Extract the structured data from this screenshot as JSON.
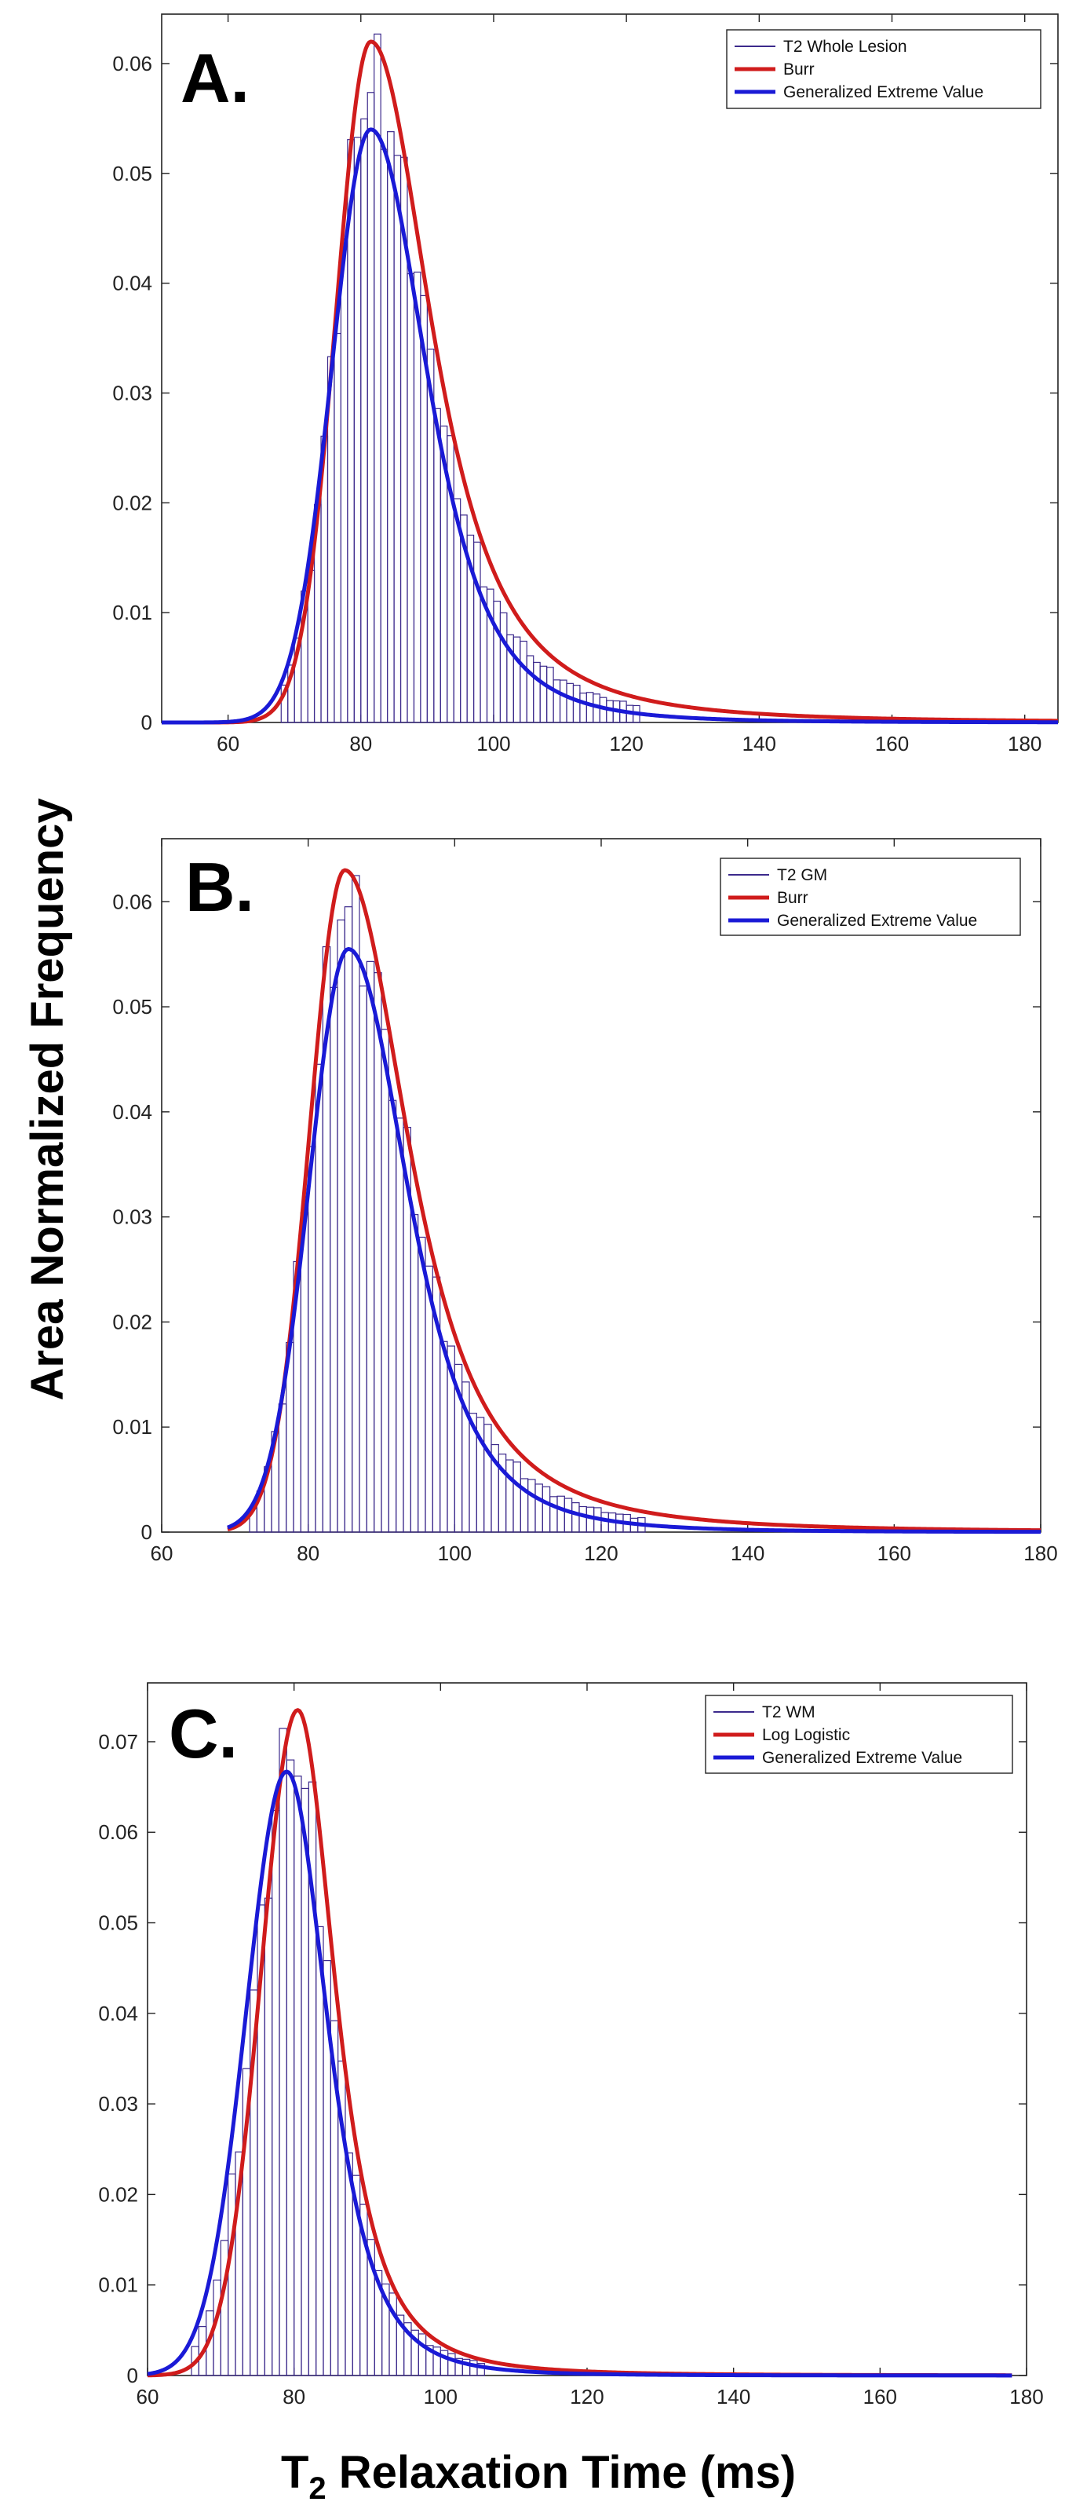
{
  "figure": {
    "ylabel": "Area Normalized Frequency",
    "xlabel_main": "T",
    "xlabel_sub": "2",
    "xlabel_rest": " Relaxation Time (ms)"
  },
  "chart_data": [
    {
      "type": "line",
      "panel": "A.",
      "xlim": [
        50,
        185
      ],
      "ylim": [
        0,
        0.0645
      ],
      "xticks": [
        60,
        80,
        100,
        120,
        140,
        160,
        180
      ],
      "yticks": [
        0,
        0.01,
        0.02,
        0.03,
        0.04,
        0.05,
        0.06
      ],
      "ytick_labels": [
        "0",
        "0.01",
        "0.02",
        "0.03",
        "0.04",
        "0.05",
        "0.06"
      ],
      "legend": [
        "T2 Whole Lesion",
        "Burr",
        "Generalized Extreme Value"
      ],
      "legend_position": "top-right",
      "histogram": {
        "name": "T2 Whole Lesion",
        "color": "#3c2a8c",
        "bin_width": 1,
        "x_start": 68,
        "x_end": 122
      },
      "series": [
        {
          "name": "Burr",
          "color": "#d01c1c",
          "mode": 81.5,
          "peak": 0.062,
          "left_scale": 5.2,
          "right_scale": 11.5,
          "tail_power": 1.5,
          "x_range": [
            50,
            185
          ]
        },
        {
          "name": "Generalized Extreme Value",
          "color": "#1a1ad6",
          "mode": 81.5,
          "peak": 0.054,
          "left_scale": 5.8,
          "right_scale": 11.0,
          "tail_power": 2.1,
          "x_range": [
            50,
            185
          ]
        }
      ]
    },
    {
      "type": "line",
      "panel": "B.",
      "xlim": [
        60,
        180
      ],
      "ylim": [
        0,
        0.066
      ],
      "xticks": [
        60,
        80,
        100,
        120,
        140,
        160,
        180
      ],
      "yticks": [
        0,
        0.01,
        0.02,
        0.03,
        0.04,
        0.05,
        0.06
      ],
      "ytick_labels": [
        "0",
        "0.01",
        "0.02",
        "0.03",
        "0.04",
        "0.05",
        "0.06"
      ],
      "legend": [
        "T2 GM",
        "Burr",
        "Generalized Extreme Value"
      ],
      "legend_position": "top-right",
      "histogram": {
        "name": "T2 GM",
        "color": "#3c2a8c",
        "bin_width": 1,
        "x_start": 72,
        "x_end": 126
      },
      "series": [
        {
          "name": "Burr",
          "color": "#d01c1c",
          "mode": 85,
          "peak": 0.063,
          "left_scale": 4.8,
          "right_scale": 11.0,
          "tail_power": 1.5,
          "x_range": [
            69,
            180
          ]
        },
        {
          "name": "Generalized Extreme Value",
          "color": "#1a1ad6",
          "mode": 85.5,
          "peak": 0.0555,
          "left_scale": 5.3,
          "right_scale": 10.5,
          "tail_power": 2.1,
          "x_range": [
            69,
            180
          ]
        }
      ]
    },
    {
      "type": "line",
      "panel": "C.",
      "xlim": [
        60,
        180
      ],
      "ylim": [
        0,
        0.0765
      ],
      "xticks": [
        60,
        80,
        100,
        120,
        140,
        160,
        180
      ],
      "yticks": [
        0,
        0.01,
        0.02,
        0.03,
        0.04,
        0.05,
        0.06,
        0.07
      ],
      "ytick_labels": [
        "0",
        "0.01",
        "0.02",
        "0.03",
        "0.04",
        "0.05",
        "0.06",
        "0.07"
      ],
      "legend": [
        "T2 WM",
        "Log Logistic",
        "Generalized Extreme Value"
      ],
      "legend_position": "top-right",
      "histogram": {
        "name": "T2 WM",
        "color": "#3c2a8c",
        "bin_width": 1,
        "x_start": 66,
        "x_end": 106
      },
      "series": [
        {
          "name": "Log Logistic",
          "color": "#d01c1c",
          "mode": 80.5,
          "peak": 0.0735,
          "left_scale": 5.0,
          "right_scale": 6.5,
          "tail_power": 1.6,
          "x_range": [
            60,
            178
          ]
        },
        {
          "name": "Generalized Extreme Value",
          "color": "#1a1ad6",
          "mode": 79,
          "peak": 0.0667,
          "left_scale": 5.5,
          "right_scale": 7.2,
          "tail_power": 2.1,
          "x_range": [
            60,
            178
          ]
        }
      ]
    }
  ]
}
